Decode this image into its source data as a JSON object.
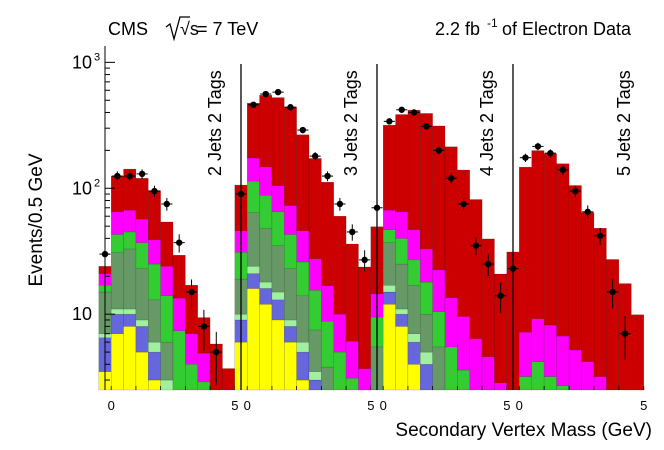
{
  "header": {
    "experiment": "CMS",
    "energy_sqrt": "√s",
    "energy_value": "= 7 TeV",
    "lumi_value": "2.2 fb",
    "lumi_exponent": "-1",
    "lumi_suffix": "of Electron Data"
  },
  "chart_data": {
    "type": "bar",
    "subtype": "stacked histogram with data points",
    "xlabel": "Secondary Vertex Mass (GeV)",
    "ylabel": "Events/0.5 GeV",
    "yscale": "log",
    "ylim": [
      2.5,
      1300
    ],
    "y_tick_labels": [
      {
        "value": 10,
        "label": "10"
      },
      {
        "value": 100,
        "label": "10",
        "exp": "2"
      },
      {
        "value": 1000,
        "label": "10",
        "exp": "3"
      }
    ],
    "x_bin_width": 0.5,
    "x_range_per_panel": [
      -0.25,
      5.25
    ],
    "series_order": [
      "yellow",
      "blue",
      "lightgreen",
      "graygreen",
      "green",
      "magenta",
      "red"
    ],
    "colors": {
      "yellow": "#ffff00",
      "blue": "#6666dd",
      "lightgreen": "#a0f0a0",
      "graygreen": "#669966",
      "green": "#33cc33",
      "magenta": "#ff00ff",
      "red": "#cc0000",
      "data": "#000000"
    },
    "panels": [
      {
        "label": "2 Jets 2 Tags",
        "tick_labels": [
          "0",
          "5"
        ],
        "bins": [
          {
            "x": -0.25,
            "values": [
              3.5,
              3,
              0.5,
              8,
              2,
              4,
              3
            ]
          },
          {
            "x": 0.25,
            "values": [
              7,
              3,
              1,
              20,
              12,
              22,
              60
            ]
          },
          {
            "x": 0.75,
            "values": [
              8,
              2,
              1,
              22,
              12,
              22,
              75
            ]
          },
          {
            "x": 1.25,
            "values": [
              5,
              3,
              1,
              14,
              14,
              20,
              63
            ]
          },
          {
            "x": 1.75,
            "values": [
              3,
              2,
              1,
              7,
              12,
              14,
              57
            ]
          },
          {
            "x": 2.25,
            "values": [
              1.5,
              1,
              0.5,
              3,
              8,
              10,
              30
            ]
          },
          {
            "x": 2.75,
            "values": [
              0.7,
              0.4,
              0.3,
              1,
              5,
              6,
              16
            ]
          },
          {
            "x": 3.25,
            "values": [
              0.5,
              0.3,
              0.2,
              0.5,
              2.5,
              3,
              10
            ]
          },
          {
            "x": 3.75,
            "values": [
              0.3,
              0.2,
              0.1,
              0.3,
              2,
              2,
              4.5
            ]
          },
          {
            "x": 4.25,
            "values": [
              0.1,
              0.1,
              0.1,
              0.1,
              1,
              0.9,
              3.5
            ]
          },
          {
            "x": 4.75,
            "values": [
              0.05,
              0.05,
              0.05,
              0.05,
              0.5,
              0.5,
              2.5
            ]
          }
        ],
        "data_points": [
          {
            "x": -0.25,
            "y": 30
          },
          {
            "x": 0.25,
            "y": 125
          },
          {
            "x": 0.75,
            "y": 125
          },
          {
            "x": 1.25,
            "y": 130
          },
          {
            "x": 1.75,
            "y": 95
          },
          {
            "x": 2.25,
            "y": 75
          },
          {
            "x": 2.75,
            "y": 37
          },
          {
            "x": 3.25,
            "y": 15
          },
          {
            "x": 3.75,
            "y": 8
          },
          {
            "x": 4.25,
            "y": 5
          }
        ]
      },
      {
        "label": "3 Jets 2 Tags",
        "tick_labels": [
          "0",
          "5"
        ],
        "bins": [
          {
            "x": -0.25,
            "values": [
              6,
              3,
              1,
              9,
              12,
              15,
              60
            ]
          },
          {
            "x": 0.25,
            "values": [
              16,
              5,
              3,
              40,
              50,
              60,
              300
            ]
          },
          {
            "x": 0.75,
            "values": [
              12,
              4,
              2,
              30,
              40,
              60,
              400
            ]
          },
          {
            "x": 1.25,
            "values": [
              9,
              4,
              2,
              20,
              30,
              40,
              420
            ]
          },
          {
            "x": 1.75,
            "values": [
              6,
              2,
              1,
              14,
              20,
              30,
              370
            ]
          },
          {
            "x": 2.25,
            "values": [
              3,
              2,
              1,
              8,
              12,
              20,
              220
            ]
          },
          {
            "x": 2.75,
            "values": [
              2,
              1,
              0.5,
              4,
              8,
              12,
              145
            ]
          },
          {
            "x": 3.25,
            "values": [
              1,
              0.5,
              0.3,
              2,
              5,
              8,
              95
            ]
          },
          {
            "x": 3.75,
            "values": [
              0.5,
              0.3,
              0.2,
              1,
              3,
              5,
              50
            ]
          },
          {
            "x": 4.25,
            "values": [
              0.3,
              0.2,
              0.1,
              0.5,
              2,
              3,
              30
            ]
          },
          {
            "x": 4.75,
            "values": [
              0.2,
              0.1,
              0.1,
              0.3,
              1,
              2,
              20
            ]
          }
        ],
        "data_points": [
          {
            "x": -0.25,
            "y": 90
          },
          {
            "x": 0.25,
            "y": 460
          },
          {
            "x": 0.75,
            "y": 560
          },
          {
            "x": 1.25,
            "y": 580
          },
          {
            "x": 1.75,
            "y": 440
          },
          {
            "x": 2.25,
            "y": 290
          },
          {
            "x": 2.75,
            "y": 180
          },
          {
            "x": 3.25,
            "y": 125
          },
          {
            "x": 3.75,
            "y": 75
          },
          {
            "x": 4.25,
            "y": 45
          },
          {
            "x": 4.75,
            "y": 27
          }
        ]
      },
      {
        "label": "4 Jets 2 Tags",
        "tick_labels": [
          "0",
          "5"
        ],
        "bins": [
          {
            "x": -0.25,
            "values": [
              1,
              1,
              0.5,
              3,
              4,
              5,
              35
            ]
          },
          {
            "x": 0.25,
            "values": [
              12,
              3,
              2,
              20,
              10,
              20,
              250
            ]
          },
          {
            "x": 0.75,
            "values": [
              8,
              2,
              1,
              14,
              15,
              25,
              320
            ]
          },
          {
            "x": 1.25,
            "values": [
              4,
              2,
              1,
              10,
              10,
              20,
              370
            ]
          },
          {
            "x": 1.75,
            "values": [
              2,
              2,
              1,
              5,
              8,
              15,
              360
            ]
          },
          {
            "x": 2.25,
            "values": [
              1,
              1,
              0.5,
              3,
              5,
              12,
              290
            ]
          },
          {
            "x": 2.75,
            "values": [
              0.5,
              0.3,
              0.2,
              1.5,
              3,
              8,
              200
            ]
          },
          {
            "x": 3.25,
            "values": [
              0.3,
              0.2,
              0.1,
              1,
              2,
              6,
              130
            ]
          },
          {
            "x": 3.75,
            "values": [
              0.2,
              0.1,
              0.1,
              0.5,
              1.5,
              4,
              75
            ]
          },
          {
            "x": 4.25,
            "values": [
              0.1,
              0.1,
              0.1,
              0.3,
              1,
              3,
              35
            ]
          },
          {
            "x": 4.75,
            "values": [
              0.05,
              0.05,
              0.05,
              0.2,
              0.5,
              2,
              18
            ]
          }
        ],
        "data_points": [
          {
            "x": -0.25,
            "y": 70
          },
          {
            "x": 0.25,
            "y": 340
          },
          {
            "x": 0.75,
            "y": 420
          },
          {
            "x": 1.25,
            "y": 400
          },
          {
            "x": 1.75,
            "y": 310
          },
          {
            "x": 2.25,
            "y": 200
          },
          {
            "x": 2.75,
            "y": 120
          },
          {
            "x": 3.25,
            "y": 75
          },
          {
            "x": 3.75,
            "y": 35
          },
          {
            "x": 4.25,
            "y": 25
          },
          {
            "x": 4.75,
            "y": 14
          }
        ]
      },
      {
        "label": "5 Jets 2 Tags",
        "tick_labels": [
          "0",
          "5"
        ],
        "bins": [
          {
            "x": -0.25,
            "values": [
              0.05,
              0.05,
              0.05,
              0.05,
              0.5,
              0.5,
              30
            ]
          },
          {
            "x": 0.25,
            "values": [
              0.05,
              0.05,
              0.05,
              0.05,
              3,
              4,
              140
            ]
          },
          {
            "x": 0.75,
            "values": [
              0.05,
              0.05,
              0.05,
              0.05,
              4,
              5,
              190
            ]
          },
          {
            "x": 1.25,
            "values": [
              0.05,
              0.05,
              0.05,
              0.05,
              3,
              5,
              180
            ]
          },
          {
            "x": 1.75,
            "values": [
              0.05,
              0.05,
              0.05,
              0.05,
              2.5,
              4,
              150
            ]
          },
          {
            "x": 2.25,
            "values": [
              0.05,
              0.05,
              0.05,
              0.05,
              2,
              3,
              100
            ]
          },
          {
            "x": 2.75,
            "values": [
              0.05,
              0.05,
              0.05,
              0.05,
              1.5,
              2.5,
              60
            ]
          },
          {
            "x": 3.25,
            "values": [
              0.05,
              0.05,
              0.05,
              0.05,
              1,
              2,
              45
            ]
          },
          {
            "x": 3.75,
            "values": [
              0.05,
              0.05,
              0.05,
              0.05,
              0.5,
              1.5,
              25
            ]
          },
          {
            "x": 4.25,
            "values": [
              0.05,
              0.05,
              0.05,
              0.05,
              0.3,
              1,
              16
            ]
          },
          {
            "x": 4.75,
            "values": [
              0.05,
              0.05,
              0.05,
              0.05,
              0.2,
              0.5,
              9
            ]
          }
        ],
        "data_points": [
          {
            "x": -0.25,
            "y": 23
          },
          {
            "x": 0.25,
            "y": 175
          },
          {
            "x": 0.75,
            "y": 215
          },
          {
            "x": 1.25,
            "y": 190
          },
          {
            "x": 1.75,
            "y": 140
          },
          {
            "x": 2.25,
            "y": 95
          },
          {
            "x": 2.75,
            "y": 65
          },
          {
            "x": 3.25,
            "y": 42
          },
          {
            "x": 3.75,
            "y": 15
          },
          {
            "x": 4.25,
            "y": 7
          }
        ]
      }
    ]
  }
}
